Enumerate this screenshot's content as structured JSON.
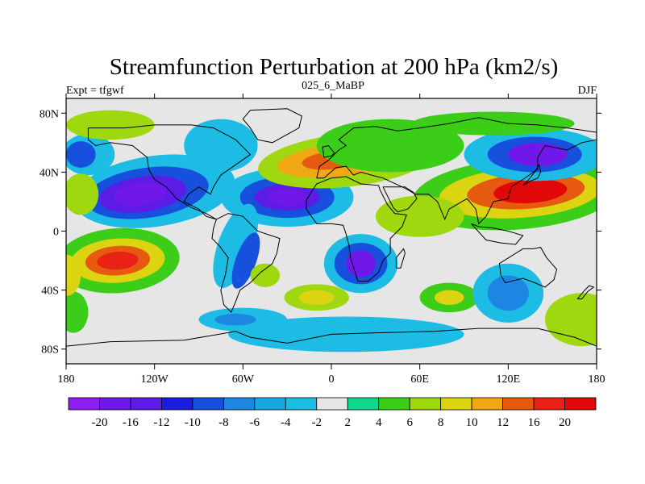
{
  "title": "Streamfunction Perturbation at 200 hPa (km2/s)",
  "left_label": "Expt = tfgwf",
  "center_label": "025_6_MaBP",
  "right_label": "DJF",
  "x_ticks": [
    "180",
    "120W",
    "60W",
    "0",
    "60E",
    "120E",
    "180"
  ],
  "y_ticks": [
    "80N",
    "40N",
    "0",
    "40S",
    "80S"
  ],
  "colorbar": {
    "levels": [
      "-20",
      "-16",
      "-12",
      "-10",
      "-8",
      "-6",
      "-4",
      "-2",
      "2",
      "4",
      "6",
      "8",
      "10",
      "12",
      "16",
      "20"
    ],
    "colors": [
      "#8c1ef2",
      "#7018e8",
      "#5a1ce6",
      "#1c1cdf",
      "#1650dc",
      "#1d86e2",
      "#18a8e0",
      "#1cbce4",
      "#e6e6e6",
      "#10d88c",
      "#3ccd18",
      "#a0d810",
      "#dcd410",
      "#f0a814",
      "#e65a10",
      "#e82214",
      "#e00808"
    ]
  },
  "chart_data": {
    "type": "heatmap",
    "title": "Streamfunction Perturbation at 200 hPa (km2/s)",
    "experiment": "Expt = tfgwf",
    "case": "025_6_MaBP",
    "season": "DJF",
    "x_range": [
      -180,
      180
    ],
    "y_range": [
      -90,
      90
    ],
    "x_tick_values": [
      -180,
      -120,
      -60,
      0,
      60,
      120,
      180
    ],
    "y_tick_values": [
      80,
      40,
      0,
      -40,
      -80
    ],
    "features": [
      {
        "name": "pacific-north-low",
        "lon": -135,
        "lat": 25,
        "value": -20
      },
      {
        "name": "atlantic-north-low",
        "lon": -30,
        "lat": 23,
        "value": -20
      },
      {
        "name": "asia-north-high",
        "lon": 135,
        "lat": 27,
        "value": 20
      },
      {
        "name": "pacific-south-high",
        "lon": -145,
        "lat": -20,
        "value": 16
      },
      {
        "name": "africa-south-low",
        "lon": 20,
        "lat": -22,
        "value": -20
      },
      {
        "name": "east-asia-north-low",
        "lon": 135,
        "lat": 50,
        "value": -20
      },
      {
        "name": "europe-high",
        "lon": 0,
        "lat": 48,
        "value": 12
      },
      {
        "name": "pacific-ne-low",
        "lon": -170,
        "lat": 52,
        "value": -10
      },
      {
        "name": "australia-low",
        "lon": 120,
        "lat": -42,
        "value": -8
      }
    ]
  }
}
